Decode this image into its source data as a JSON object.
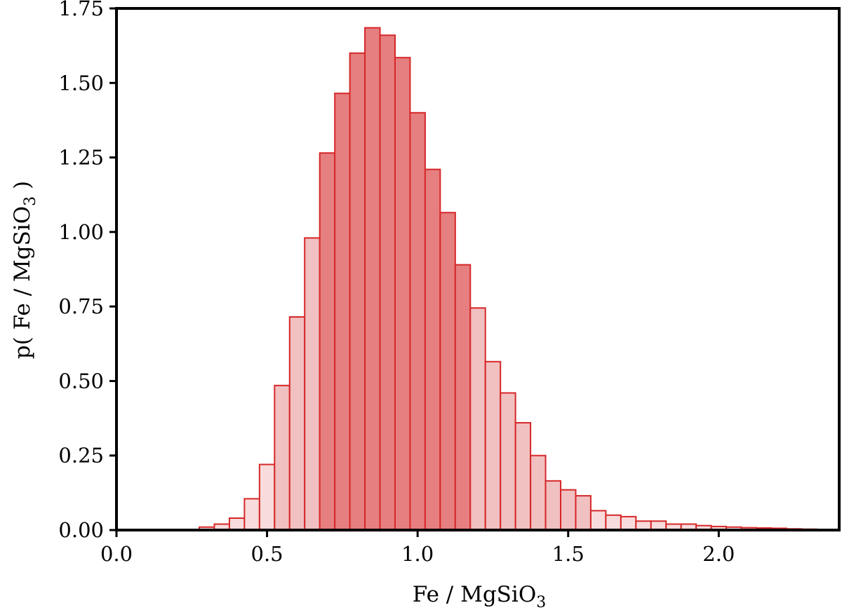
{
  "chart_data": {
    "type": "bar",
    "xlabel": "Fe / MgSiO",
    "xlabel_sub": "3",
    "ylabel": "p( Fe / MgSiO",
    "ylabel_sub": "3",
    "ylabel_end": " )",
    "xlim": [
      0,
      2.4
    ],
    "ylim": [
      0,
      1.75
    ],
    "xticks": [
      0.0,
      0.5,
      1.0,
      1.5,
      2.0
    ],
    "xtick_labels": [
      "0.0",
      "0.5",
      "1.0",
      "1.5",
      "2.0"
    ],
    "yticks": [
      0.0,
      0.25,
      0.5,
      0.75,
      1.0,
      1.25,
      1.5,
      1.75
    ],
    "ytick_labels": [
      "0.00",
      "0.25",
      "0.50",
      "0.75",
      "1.00",
      "1.25",
      "1.50",
      "1.75"
    ],
    "bin_edges_start": 0.275,
    "bin_width": 0.05,
    "values": [
      0.01,
      0.02,
      0.04,
      0.105,
      0.22,
      0.485,
      0.715,
      0.98,
      1.265,
      1.465,
      1.6,
      1.685,
      1.66,
      1.585,
      1.4,
      1.21,
      1.065,
      0.89,
      0.745,
      0.565,
      0.46,
      0.36,
      0.25,
      0.165,
      0.135,
      0.115,
      0.065,
      0.05,
      0.045,
      0.03,
      0.03,
      0.02,
      0.02,
      0.015,
      0.012,
      0.01,
      0.008,
      0.007,
      0.006,
      0.004,
      0.003,
      0.002
    ],
    "bands": [
      {
        "level": "light",
        "range": [
          0.275,
          0.525
        ]
      },
      {
        "level": "medium",
        "range": [
          0.525,
          0.675
        ]
      },
      {
        "level": "dark",
        "range": [
          0.675,
          1.2
        ]
      },
      {
        "level": "medium",
        "range": [
          1.2,
          1.6
        ]
      },
      {
        "level": "light",
        "range": [
          1.6,
          2.4
        ]
      }
    ],
    "colors": {
      "edge": "#d62728",
      "light": "#f8dcdc",
      "medium": "#f1c0c1",
      "dark": "#e67f80"
    },
    "grid": false,
    "legend": "none"
  }
}
